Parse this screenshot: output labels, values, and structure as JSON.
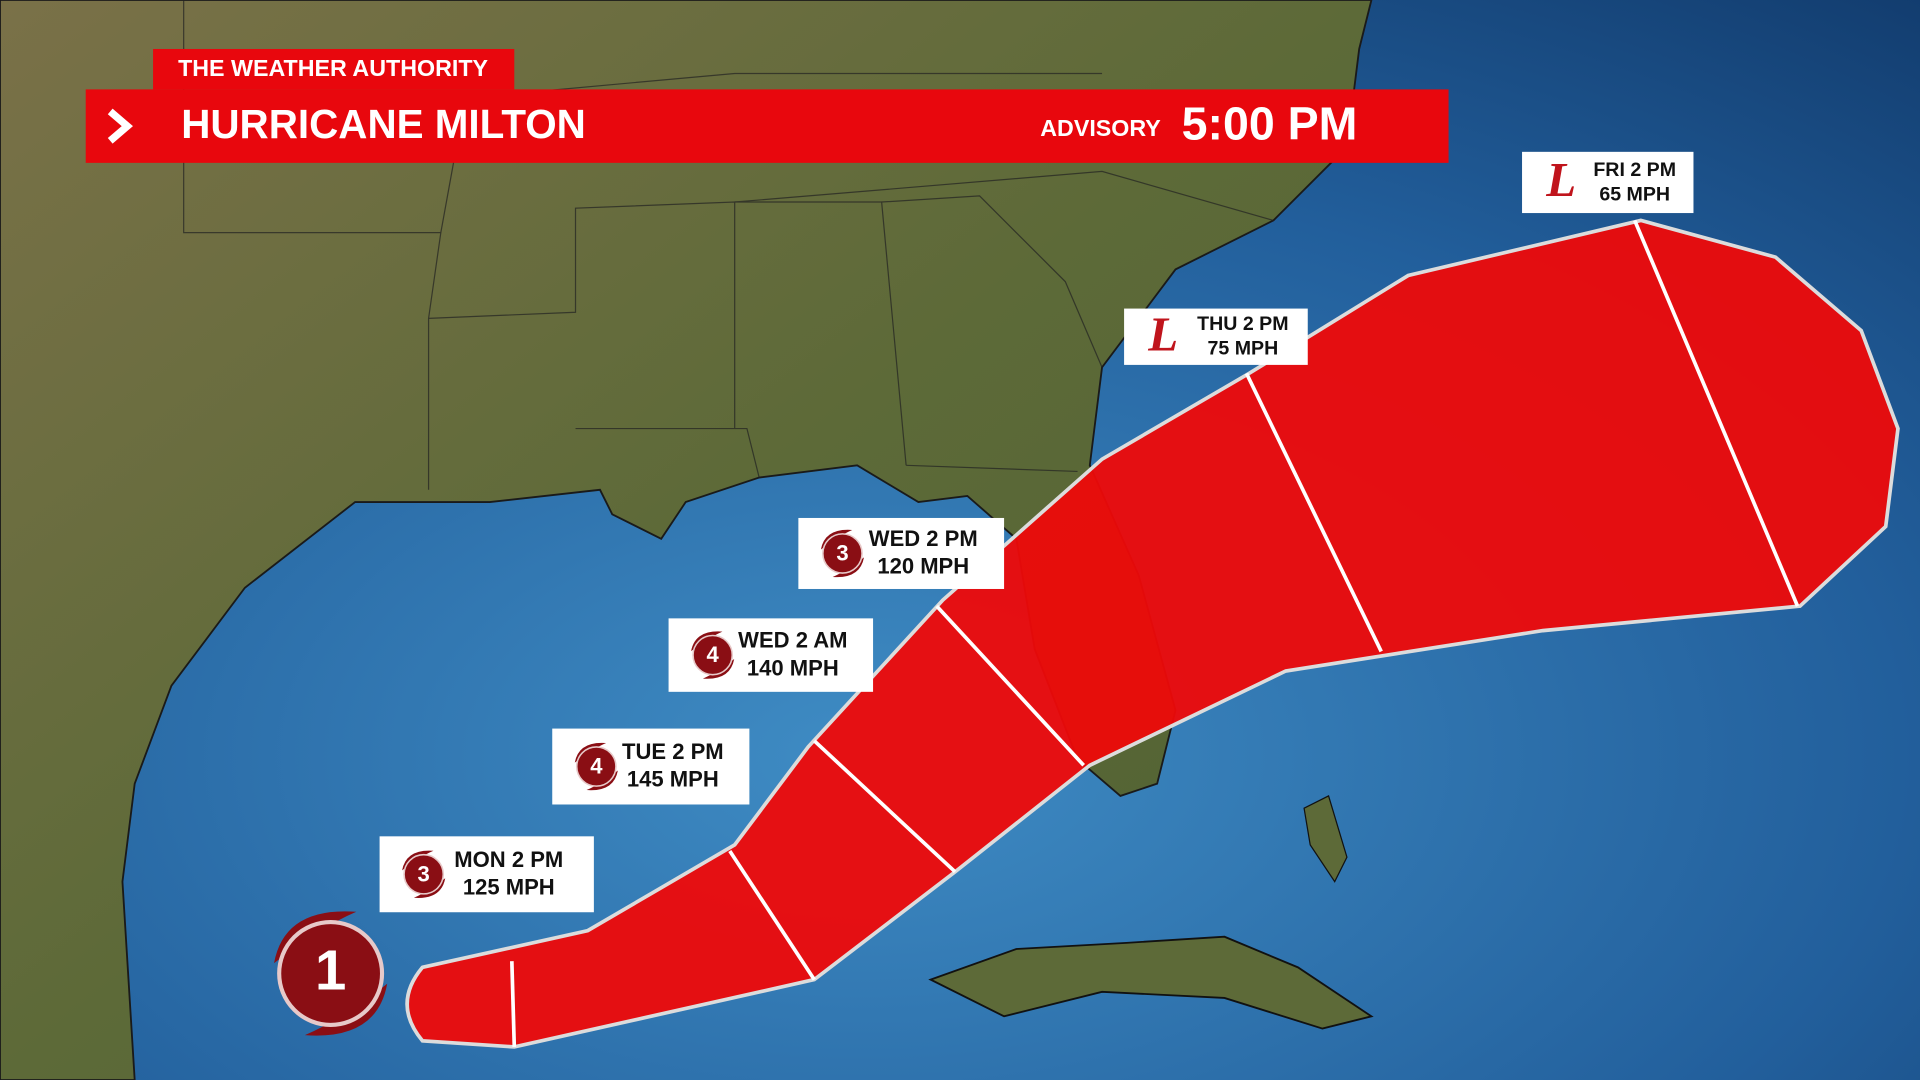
{
  "header": {
    "brand": "THE WEATHER AUTHORITY",
    "title": "HURRICANE MILTON",
    "advisory_label": "ADVISORY",
    "advisory_time": "5:00 PM"
  },
  "current_storm": {
    "category": "1"
  },
  "forecast_points": [
    {
      "icon": "3",
      "time": "MON 2 PM",
      "wind": "125 MPH"
    },
    {
      "icon": "4",
      "time": "TUE 2 PM",
      "wind": "145 MPH"
    },
    {
      "icon": "4",
      "time": "WED 2 AM",
      "wind": "140 MPH"
    },
    {
      "icon": "3",
      "time": "WED 2 PM",
      "wind": "120 MPH"
    },
    {
      "icon": "L",
      "time": "THU 2 PM",
      "wind": "75 MPH"
    },
    {
      "icon": "L",
      "time": "FRI 2 PM",
      "wind": "65 MPH"
    }
  ]
}
